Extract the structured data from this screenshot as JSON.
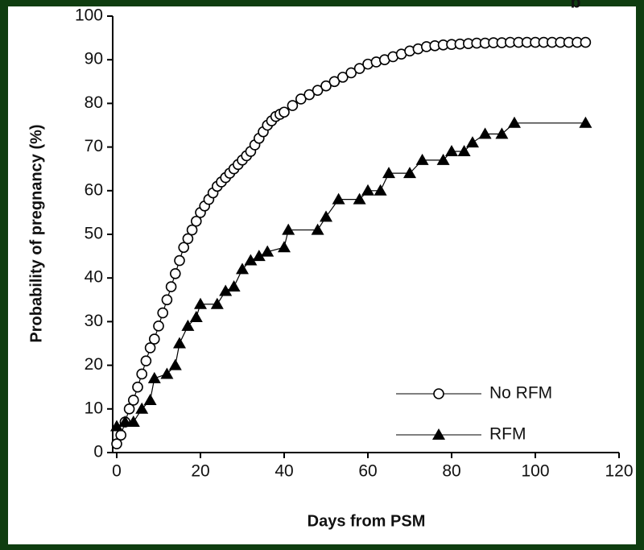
{
  "chart_data": {
    "type": "line",
    "annotation": "b",
    "x_label": "Days from PSM",
    "y_label": "Probability of pregnancy (%)",
    "xlim": [
      0,
      120
    ],
    "xticks": [
      0,
      20,
      40,
      60,
      80,
      100,
      120
    ],
    "ylim": [
      0,
      100
    ],
    "yticks": [
      0,
      10,
      20,
      30,
      40,
      50,
      60,
      70,
      80,
      90,
      100
    ],
    "legend": "lower right",
    "series": [
      {
        "name": "No RFM",
        "color": "#000000",
        "marker": "circle",
        "x": [
          0,
          1,
          2,
          3,
          4,
          5,
          6,
          7,
          8,
          9,
          10,
          11,
          12,
          13,
          14,
          15,
          16,
          17,
          18,
          19,
          20,
          21,
          22,
          23,
          24,
          25,
          26,
          27,
          28,
          29,
          30,
          31,
          32,
          33,
          34,
          35,
          36,
          37,
          38,
          39,
          40,
          42,
          44,
          46,
          48,
          50,
          52,
          54,
          56,
          58,
          60,
          62,
          64,
          66,
          68,
          70,
          72,
          74,
          76,
          78,
          80,
          82,
          84,
          86,
          88,
          90,
          92,
          94,
          96,
          98,
          100,
          102,
          104,
          106,
          108,
          110,
          112
        ],
        "values": [
          2,
          4,
          7,
          10,
          12,
          15,
          18,
          21,
          24,
          26,
          29,
          32,
          35,
          38,
          41,
          44,
          47,
          49,
          51,
          53,
          55,
          56.5,
          58,
          59.5,
          61,
          62,
          63,
          64,
          65,
          66,
          67,
          68,
          69,
          70.5,
          72,
          73.5,
          75,
          76,
          77,
          77.5,
          78,
          79.5,
          81,
          82,
          83,
          84,
          85,
          86,
          87,
          88,
          89,
          89.5,
          90,
          90.7,
          91.3,
          92,
          92.5,
          93,
          93.2,
          93.4,
          93.5,
          93.6,
          93.7,
          93.8,
          93.8,
          93.9,
          93.9,
          94,
          94,
          94,
          94,
          94,
          94,
          94,
          94,
          94,
          94
        ]
      },
      {
        "name": "RFM",
        "color": "#000000",
        "marker": "triangle",
        "x": [
          0,
          2,
          4,
          6,
          8,
          9,
          12,
          14,
          15,
          17,
          19,
          20,
          24,
          26,
          28,
          30,
          32,
          34,
          36,
          40,
          41,
          48,
          50,
          53,
          58,
          60,
          63,
          65,
          70,
          73,
          78,
          80,
          83,
          85,
          88,
          92,
          95,
          112
        ],
        "values": [
          6,
          7,
          7,
          10,
          12,
          17,
          18,
          20,
          25,
          29,
          31,
          34,
          34,
          37,
          38,
          42,
          44,
          45,
          46,
          47,
          51,
          51,
          54,
          58,
          58,
          60,
          60,
          64,
          64,
          67,
          67,
          69,
          69,
          71,
          73,
          73,
          75.5,
          75.5
        ]
      }
    ]
  }
}
